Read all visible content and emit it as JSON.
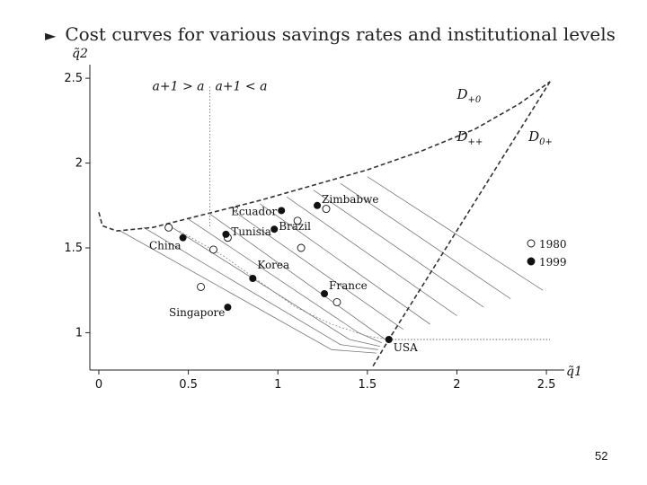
{
  "slide": {
    "title": "Cost curves for various savings rates and institutional levels",
    "page_number": "52"
  },
  "chart_data": {
    "type": "scatter",
    "title": "Cost curves for various savings rates and institutional levels",
    "xlabel": "q̃1",
    "ylabel": "q̃2",
    "xlim": [
      -0.05,
      2.6
    ],
    "ylim": [
      0.78,
      2.58
    ],
    "xticks": [
      "0",
      "0.5",
      "1",
      "1.5",
      "2",
      "2.5"
    ],
    "yticks": [
      "1",
      "1.5",
      "2",
      "2.5"
    ],
    "region_labels": [
      {
        "text": "D+0",
        "main": "D",
        "sub": "+0",
        "x": 2.0,
        "y": 2.38
      },
      {
        "text": "D++",
        "main": "D",
        "sub": "++",
        "x": 2.0,
        "y": 2.13
      },
      {
        "text": "D0+",
        "main": "D",
        "sub": "0+",
        "x": 2.4,
        "y": 2.13
      }
    ],
    "threshold_label": {
      "left": "a+1 > a",
      "right": "a+1 < a",
      "x": 0.62
    },
    "legend": [
      {
        "marker": "open",
        "label": "1980"
      },
      {
        "marker": "filled",
        "label": "1999"
      }
    ],
    "points_1980": [
      [
        0.39,
        1.62
      ],
      [
        0.64,
        1.49
      ],
      [
        0.72,
        1.56
      ],
      [
        1.11,
        1.66
      ],
      [
        1.13,
        1.5
      ],
      [
        1.27,
        1.73
      ],
      [
        1.33,
        1.18
      ],
      [
        0.57,
        1.27
      ]
    ],
    "points_1999": [
      {
        "country": "Zimbabwe",
        "x": 1.22,
        "y": 1.75
      },
      {
        "country": "Ecuador",
        "x": 1.02,
        "y": 1.72
      },
      {
        "country": "Tunisia",
        "x": 0.71,
        "y": 1.58
      },
      {
        "country": "Brazil",
        "x": 0.98,
        "y": 1.61
      },
      {
        "country": "China",
        "x": 0.47,
        "y": 1.56
      },
      {
        "country": "Korea",
        "x": 0.86,
        "y": 1.32
      },
      {
        "country": "France",
        "x": 1.26,
        "y": 1.23
      },
      {
        "country": "Singapore",
        "x": 0.72,
        "y": 1.15
      },
      {
        "country": "USA",
        "x": 1.62,
        "y": 0.96
      }
    ],
    "boundary_D": [
      [
        0,
        1.71
      ],
      [
        0.02,
        1.63
      ],
      [
        0.1,
        1.6
      ],
      [
        0.3,
        1.62
      ],
      [
        0.6,
        1.7
      ],
      [
        0.9,
        1.78
      ],
      [
        1.2,
        1.87
      ],
      [
        1.5,
        1.96
      ],
      [
        1.8,
        2.07
      ],
      [
        2.1,
        2.2
      ],
      [
        2.35,
        2.35
      ],
      [
        2.52,
        2.48
      ]
    ],
    "boundary_vertical": [
      [
        2.52,
        2.48
      ],
      [
        1.62,
        0.96
      ],
      [
        1.53,
        0.8
      ]
    ],
    "usa_baseline": [
      [
        1.62,
        0.96
      ],
      [
        2.52,
        0.96
      ]
    ],
    "cost_curves": [
      [
        [
          0.12,
          1.6
        ],
        [
          1.3,
          0.9
        ],
        [
          1.55,
          0.88
        ]
      ],
      [
        [
          0.25,
          1.62
        ],
        [
          1.35,
          0.93
        ],
        [
          1.56,
          0.9
        ]
      ],
      [
        [
          0.38,
          1.64
        ],
        [
          1.4,
          0.96
        ],
        [
          1.57,
          0.92
        ]
      ],
      [
        [
          0.5,
          1.67
        ],
        [
          1.45,
          1.0
        ],
        [
          1.58,
          0.94
        ]
      ],
      [
        [
          0.62,
          1.7
        ],
        [
          1.6,
          0.96
        ]
      ],
      [
        [
          0.75,
          1.72
        ],
        [
          1.7,
          1.02
        ]
      ],
      [
        [
          0.9,
          1.76
        ],
        [
          1.85,
          1.05
        ]
      ],
      [
        [
          1.05,
          1.8
        ],
        [
          2.0,
          1.1
        ]
      ],
      [
        [
          1.2,
          1.84
        ],
        [
          2.15,
          1.15
        ]
      ],
      [
        [
          1.35,
          1.88
        ],
        [
          2.3,
          1.2
        ]
      ],
      [
        [
          1.5,
          1.92
        ],
        [
          2.48,
          1.25
        ]
      ]
    ],
    "dotted_curve": [
      [
        0.45,
        1.6
      ],
      [
        0.7,
        1.45
      ],
      [
        0.9,
        1.3
      ],
      [
        1.1,
        1.15
      ],
      [
        1.3,
        1.05
      ],
      [
        1.5,
        0.98
      ],
      [
        1.62,
        0.96
      ]
    ],
    "colors": {
      "axis": "#222222",
      "curve": "#333333",
      "point": "#111111"
    }
  }
}
